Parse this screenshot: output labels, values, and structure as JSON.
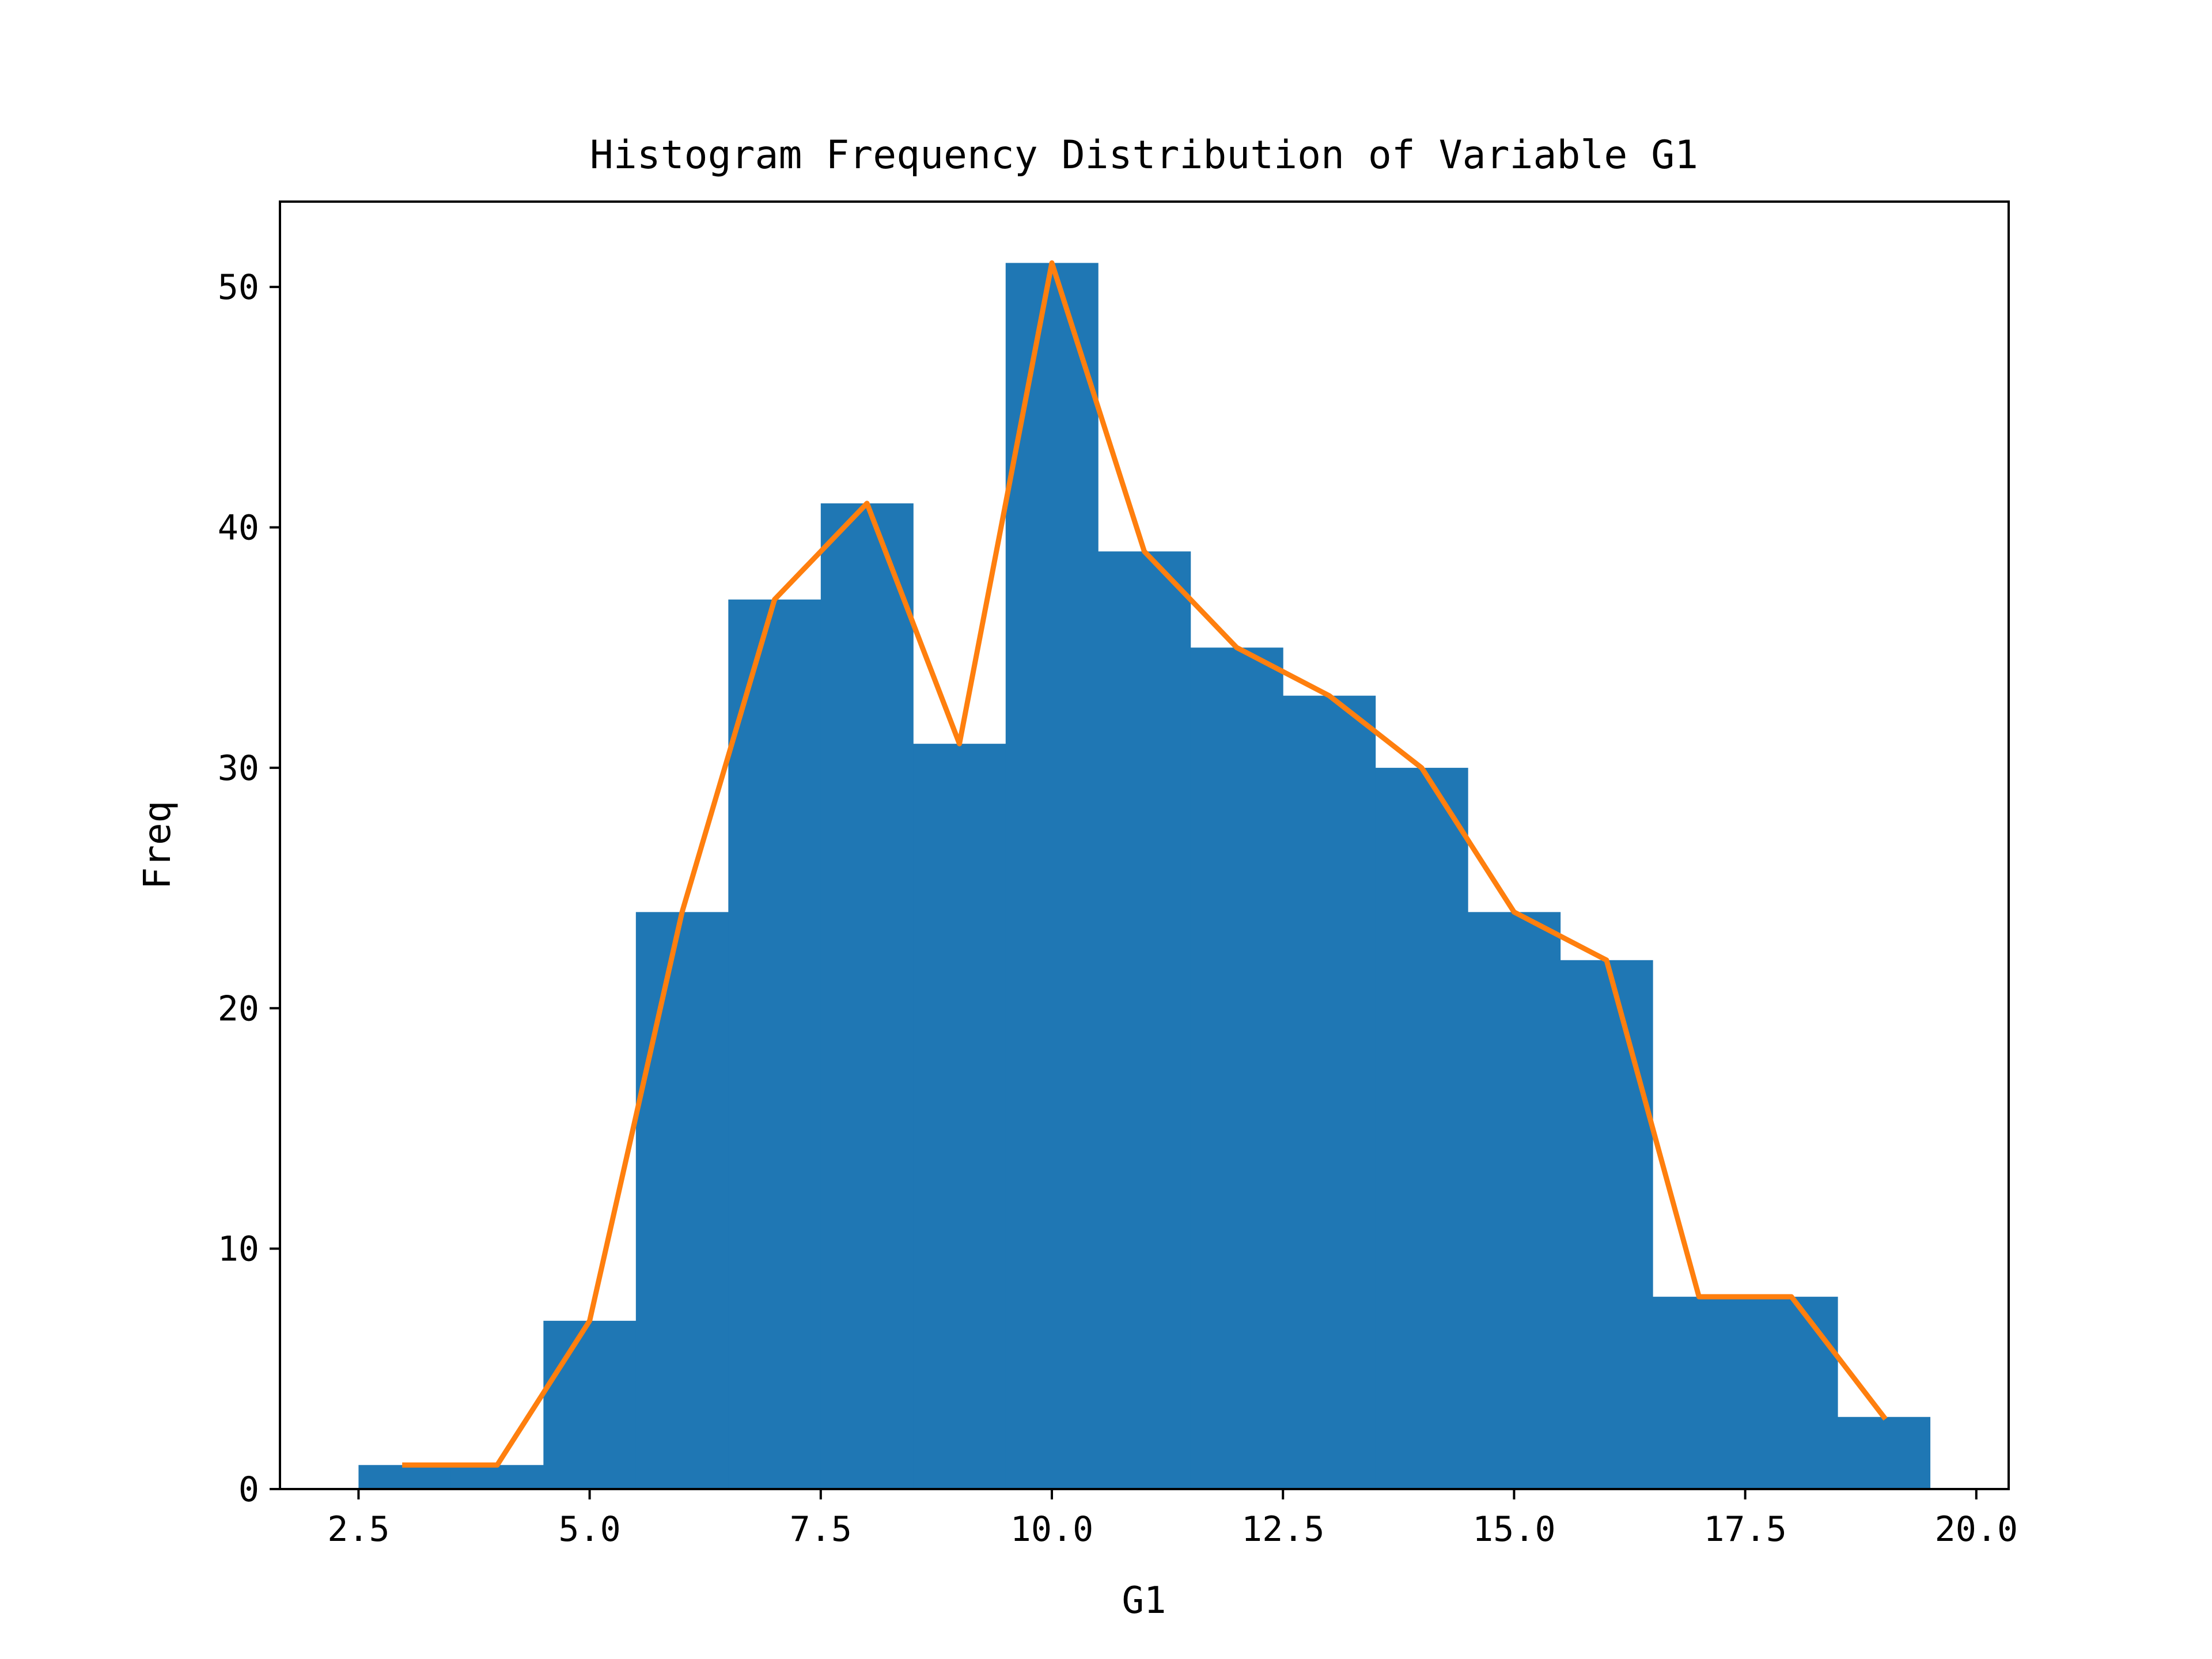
{
  "chart_data": {
    "type": "bar",
    "title": "Histogram Frequency Distribution of Variable G1",
    "xlabel": "G1",
    "ylabel": "Freq",
    "xlim": [
      1.65,
      20.35
    ],
    "ylim": [
      0,
      53.55
    ],
    "xticks": [
      "2.5",
      "5.0",
      "7.5",
      "10.0",
      "12.5",
      "15.0",
      "17.5",
      "20.0"
    ],
    "xtick_values": [
      2.5,
      5.0,
      7.5,
      10.0,
      12.5,
      15.0,
      17.5,
      20.0
    ],
    "yticks": [
      "0",
      "10",
      "20",
      "30",
      "40",
      "50"
    ],
    "ytick_values": [
      0,
      10,
      20,
      30,
      40,
      50
    ],
    "bin_edges": [
      2.5,
      3.5,
      4.5,
      5.5,
      6.5,
      7.5,
      8.5,
      9.5,
      10.5,
      11.5,
      12.5,
      13.5,
      14.5,
      15.5,
      16.5,
      17.5,
      18.5,
      19.5
    ],
    "series": [
      {
        "type": "histogram",
        "color": "#1f77b4",
        "x": [
          3,
          4,
          5,
          6,
          7,
          8,
          9,
          10,
          11,
          12,
          13,
          14,
          15,
          16,
          17,
          18,
          19
        ],
        "values": [
          1,
          1,
          7,
          24,
          37,
          41,
          31,
          51,
          39,
          35,
          33,
          30,
          24,
          22,
          8,
          8,
          3
        ]
      },
      {
        "type": "line",
        "color": "#ff7f0e",
        "x": [
          3,
          4,
          5,
          6,
          7,
          8,
          9,
          10,
          11,
          12,
          13,
          14,
          15,
          16,
          17,
          18,
          19
        ],
        "values": [
          1,
          1,
          7,
          24,
          37,
          41,
          31,
          51,
          39,
          35,
          33,
          30,
          24,
          22,
          8,
          8,
          3
        ]
      }
    ],
    "grid": false,
    "legend": false
  }
}
